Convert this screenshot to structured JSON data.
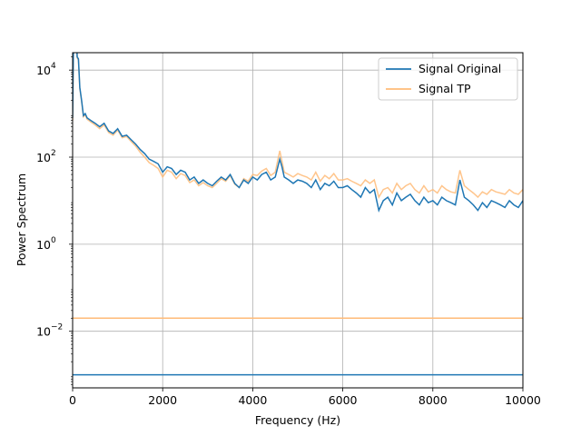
{
  "chart_data": {
    "type": "line",
    "xlabel": "Frequency (Hz)",
    "ylabel": "Power Spectrum",
    "xlim": [
      0,
      10000
    ],
    "ylim_log10": [
      -3.3,
      4.4
    ],
    "yscale": "log",
    "grid": true,
    "legend_position": "upper-right",
    "x_ticks": [
      {
        "value": 0,
        "label": "0"
      },
      {
        "value": 2000,
        "label": "2000"
      },
      {
        "value": 4000,
        "label": "4000"
      },
      {
        "value": 6000,
        "label": "6000"
      },
      {
        "value": 8000,
        "label": "8000"
      },
      {
        "value": 10000,
        "label": "10000"
      }
    ],
    "y_ticks": [
      {
        "exp": -2,
        "base": "10",
        "sup": "−2"
      },
      {
        "exp": 0,
        "base": "10",
        "sup": "0"
      },
      {
        "exp": 2,
        "base": "10",
        "sup": "2"
      },
      {
        "exp": 4,
        "base": "10",
        "sup": "4"
      }
    ],
    "series": [
      {
        "name": "Signal Original",
        "color": "#1f77b4",
        "opacity": 1.0,
        "offset_line": 0.001,
        "x": [
          0,
          20,
          50,
          80,
          100,
          130,
          160,
          200,
          240,
          280,
          320,
          400,
          500,
          600,
          700,
          800,
          900,
          1000,
          1100,
          1200,
          1300,
          1400,
          1500,
          1600,
          1700,
          1800,
          1900,
          2000,
          2100,
          2200,
          2300,
          2400,
          2500,
          2600,
          2700,
          2800,
          2900,
          3000,
          3100,
          3200,
          3300,
          3400,
          3500,
          3600,
          3700,
          3800,
          3900,
          4000,
          4100,
          4200,
          4300,
          4400,
          4500,
          4600,
          4650,
          4700,
          4800,
          4900,
          5000,
          5100,
          5200,
          5300,
          5400,
          5500,
          5600,
          5700,
          5800,
          5900,
          6000,
          6100,
          6200,
          6300,
          6400,
          6500,
          6600,
          6700,
          6800,
          6900,
          7000,
          7100,
          7200,
          7300,
          7400,
          7500,
          7600,
          7700,
          7800,
          7900,
          8000,
          8100,
          8200,
          8300,
          8400,
          8500,
          8600,
          8700,
          8800,
          8900,
          9000,
          9100,
          9200,
          9300,
          9400,
          9500,
          9600,
          9700,
          9800,
          9900,
          10000
        ],
        "y": [
          800,
          60000,
          90000,
          100000,
          20000,
          18000,
          4000,
          2000,
          900,
          1000,
          800,
          700,
          600,
          500,
          600,
          400,
          350,
          450,
          300,
          320,
          250,
          200,
          150,
          120,
          90,
          80,
          70,
          45,
          60,
          55,
          40,
          50,
          45,
          30,
          35,
          25,
          30,
          25,
          22,
          28,
          35,
          30,
          40,
          25,
          20,
          30,
          25,
          35,
          30,
          40,
          45,
          30,
          35,
          90,
          60,
          35,
          30,
          25,
          30,
          28,
          25,
          20,
          30,
          18,
          25,
          22,
          28,
          20,
          20,
          22,
          18,
          15,
          12,
          20,
          15,
          18,
          6,
          10,
          12,
          8,
          15,
          10,
          12,
          14,
          10,
          8,
          12,
          9,
          10,
          8,
          12,
          10,
          9,
          8,
          30,
          12,
          10,
          8,
          6,
          9,
          7,
          10,
          9,
          8,
          7,
          10,
          8,
          7,
          10
        ]
      },
      {
        "name": "Signal TP",
        "color": "#ffbb78",
        "opacity": 1.0,
        "offset_line": 0.02,
        "x": [
          0,
          20,
          50,
          80,
          100,
          130,
          160,
          200,
          240,
          280,
          320,
          400,
          500,
          600,
          700,
          800,
          900,
          1000,
          1100,
          1200,
          1300,
          1400,
          1500,
          1600,
          1700,
          1800,
          1900,
          2000,
          2100,
          2200,
          2300,
          2400,
          2500,
          2600,
          2700,
          2800,
          2900,
          3000,
          3100,
          3200,
          3300,
          3400,
          3500,
          3600,
          3700,
          3800,
          3900,
          4000,
          4100,
          4200,
          4300,
          4400,
          4500,
          4600,
          4650,
          4700,
          4800,
          4900,
          5000,
          5100,
          5200,
          5300,
          5400,
          5500,
          5600,
          5700,
          5800,
          5900,
          6000,
          6100,
          6200,
          6300,
          6400,
          6500,
          6600,
          6700,
          6800,
          6900,
          7000,
          7100,
          7200,
          7300,
          7400,
          7500,
          7600,
          7700,
          7800,
          7900,
          8000,
          8100,
          8200,
          8300,
          8400,
          8500,
          8600,
          8700,
          8800,
          8900,
          9000,
          9100,
          9200,
          9300,
          9400,
          9500,
          9600,
          9700,
          9800,
          9900,
          10000
        ],
        "y": [
          700,
          55000,
          85000,
          95000,
          19000,
          17000,
          3800,
          1900,
          850,
          950,
          750,
          650,
          550,
          450,
          550,
          370,
          320,
          420,
          280,
          300,
          230,
          180,
          130,
          100,
          75,
          65,
          55,
          35,
          50,
          45,
          32,
          42,
          38,
          26,
          30,
          22,
          26,
          22,
          20,
          25,
          32,
          28,
          38,
          24,
          20,
          32,
          28,
          40,
          38,
          48,
          55,
          38,
          45,
          140,
          80,
          45,
          40,
          35,
          42,
          38,
          35,
          30,
          45,
          28,
          38,
          32,
          42,
          30,
          30,
          32,
          28,
          25,
          22,
          30,
          25,
          30,
          12,
          18,
          20,
          15,
          25,
          18,
          22,
          25,
          18,
          15,
          22,
          16,
          18,
          15,
          22,
          18,
          16,
          15,
          50,
          22,
          18,
          15,
          12,
          16,
          14,
          18,
          16,
          15,
          14,
          18,
          15,
          14,
          18
        ]
      }
    ]
  }
}
